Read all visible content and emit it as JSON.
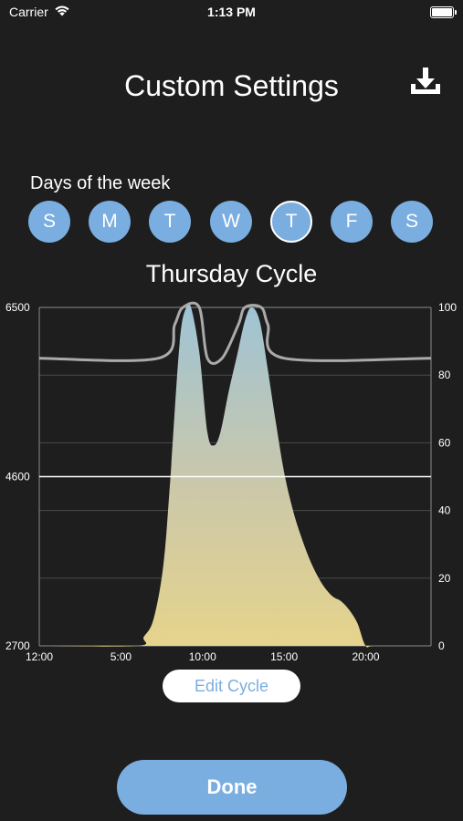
{
  "status_bar": {
    "carrier": "Carrier",
    "time": "1:13 PM"
  },
  "header": {
    "title": "Custom Settings",
    "download_icon": "download-icon"
  },
  "days": {
    "label": "Days of the week",
    "items": [
      {
        "letter": "S",
        "selected": false
      },
      {
        "letter": "M",
        "selected": false
      },
      {
        "letter": "T",
        "selected": false
      },
      {
        "letter": "W",
        "selected": false
      },
      {
        "letter": "T",
        "selected": true
      },
      {
        "letter": "F",
        "selected": false
      },
      {
        "letter": "S",
        "selected": false
      }
    ]
  },
  "cycle": {
    "title": "Thursday Cycle"
  },
  "chart_data": {
    "type": "area",
    "left_axis": {
      "ticks": [
        "6500",
        "4600",
        "2700"
      ],
      "ylim": [
        2700,
        6500
      ]
    },
    "right_axis": {
      "ticks": [
        "100",
        "80",
        "60",
        "40",
        "20",
        "0"
      ],
      "ylim": [
        0,
        100
      ]
    },
    "x_ticks": [
      "12:00",
      "5:00",
      "10:00",
      "15:00",
      "20:00"
    ],
    "series": [
      {
        "kind": "color-temperature-area",
        "x_hours": [
          0,
          6,
          6.4,
          7,
          7.6,
          8,
          8.6,
          9,
          9.3,
          9.8,
          10.3,
          10.7,
          11.1,
          11.6,
          12.1,
          12.6,
          13,
          13.5,
          14,
          14.5,
          15,
          15.5,
          16,
          16.5,
          17,
          17.5,
          18,
          18.5,
          19,
          19.5,
          20,
          20.6,
          24
        ],
        "y_values": [
          2700,
          2700,
          2800,
          3000,
          3600,
          4500,
          6100,
          6500,
          6500,
          6000,
          5100,
          4950,
          5100,
          5550,
          5950,
          6350,
          6500,
          6350,
          5800,
          5200,
          4650,
          4250,
          3950,
          3700,
          3500,
          3350,
          3250,
          3200,
          3100,
          2950,
          2700,
          2700,
          2700
        ]
      },
      {
        "kind": "brightness-line",
        "x_hours": [
          0,
          7.3,
          8.3,
          8.8,
          9.8,
          10.3,
          11.2,
          12.2,
          12.6,
          13.6,
          14,
          15,
          24
        ],
        "y_values": [
          85,
          85,
          95,
          100,
          100,
          85,
          85,
          95,
          100,
          100,
          95,
          85,
          85
        ]
      }
    ],
    "reference_lines": {
      "left_axis": [
        4600
      ]
    },
    "gradient_colors": [
      "#9ec3d6",
      "#ccc8a8",
      "#e6d48c"
    ],
    "line_color": "#aaaaaa"
  },
  "actions": {
    "edit_label": "Edit Cycle",
    "done_label": "Done"
  },
  "colors": {
    "accent": "#7aaee0",
    "background": "#1e1e1e"
  }
}
